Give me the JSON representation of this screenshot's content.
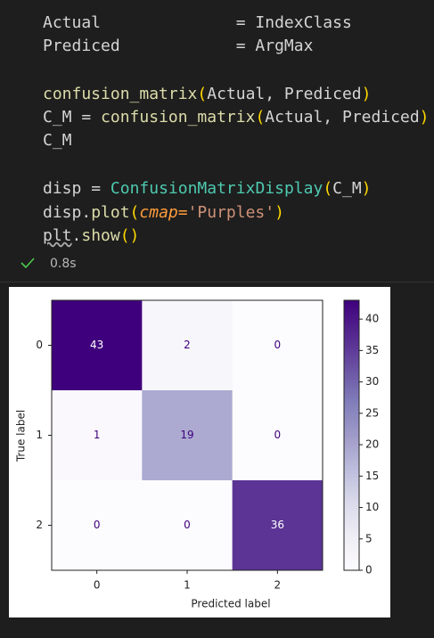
{
  "code": [
    [
      "Actual",
      "=",
      "IndexClass"
    ],
    [
      "Prediced",
      "=",
      "ArgMax"
    ],
    [
      "confusion_matrix",
      "(",
      "Actual, Prediced",
      ")"
    ],
    [
      "C_M",
      "=",
      "confusion_matrix",
      "(",
      "Actual, Prediced",
      ")"
    ],
    [
      "C_M"
    ],
    [
      "disp",
      "=",
      "ConfusionMatrixDisplay",
      "(",
      "C_M",
      ")"
    ],
    [
      "disp.",
      "plot",
      "(",
      "cmap=",
      "'Purples'",
      ")"
    ],
    [
      "plt",
      ".",
      "show",
      "()"
    ]
  ],
  "status": {
    "duration": "0.8s"
  },
  "chart_data": {
    "type": "heatmap",
    "categories": [
      "0",
      "1",
      "2"
    ],
    "y_categories": [
      "0",
      "1",
      "2"
    ],
    "values": [
      [
        43,
        2,
        0
      ],
      [
        1,
        19,
        0
      ],
      [
        0,
        0,
        36
      ]
    ],
    "xlabel": "Predicted label",
    "ylabel": "True label",
    "cmap": "Purples",
    "clim": [
      0,
      43
    ],
    "cticks": [
      0,
      5,
      10,
      15,
      20,
      25,
      30,
      35,
      40
    ]
  }
}
